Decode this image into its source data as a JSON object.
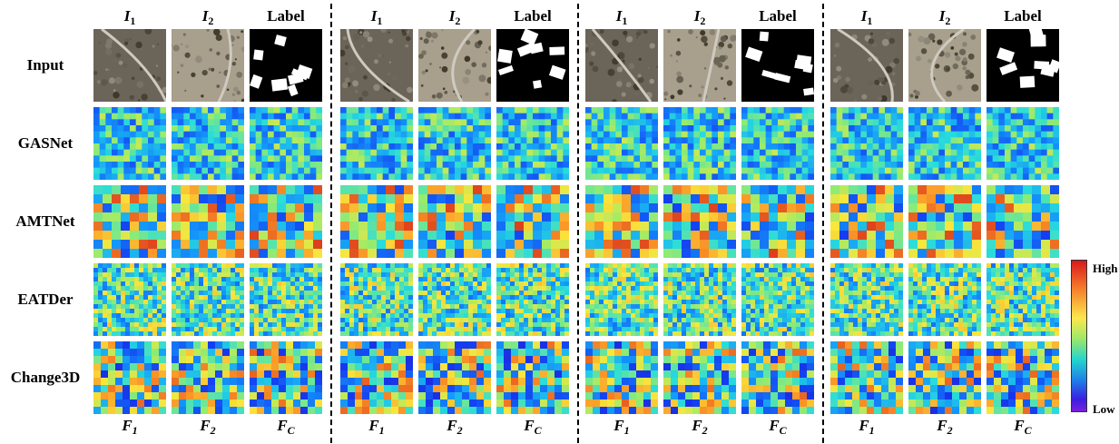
{
  "column_headers": [
    {
      "main": "I",
      "sub": "1"
    },
    {
      "main": "I",
      "sub": "2"
    },
    {
      "main": "Label",
      "sub": ""
    },
    {
      "main": "I",
      "sub": "1"
    },
    {
      "main": "I",
      "sub": "2"
    },
    {
      "main": "Label",
      "sub": ""
    },
    {
      "main": "I",
      "sub": "1"
    },
    {
      "main": "I",
      "sub": "2"
    },
    {
      "main": "Label",
      "sub": ""
    },
    {
      "main": "I",
      "sub": "1"
    },
    {
      "main": "I",
      "sub": "2"
    },
    {
      "main": "Label",
      "sub": ""
    }
  ],
  "column_footers": [
    {
      "main": "F",
      "sub": "1"
    },
    {
      "main": "F",
      "sub": "2"
    },
    {
      "main": "F",
      "sub": "C"
    },
    {
      "main": "F",
      "sub": "1"
    },
    {
      "main": "F",
      "sub": "2"
    },
    {
      "main": "F",
      "sub": "C"
    },
    {
      "main": "F",
      "sub": "1"
    },
    {
      "main": "F",
      "sub": "2"
    },
    {
      "main": "F",
      "sub": "C"
    },
    {
      "main": "F",
      "sub": "1"
    },
    {
      "main": "F",
      "sub": "2"
    },
    {
      "main": "F",
      "sub": "C"
    }
  ],
  "row_labels": [
    "Input",
    "GASNet",
    "AMTNet",
    "EATDer",
    "Change3D"
  ],
  "colorbar": {
    "high_label": "High",
    "low_label": "Low"
  },
  "colors": {
    "heat_high": "#d7191c",
    "heat_mid": "#fde74c",
    "heat_low": "#1f3fe0",
    "label_white": "#ffffff",
    "label_black": "#000000"
  }
}
